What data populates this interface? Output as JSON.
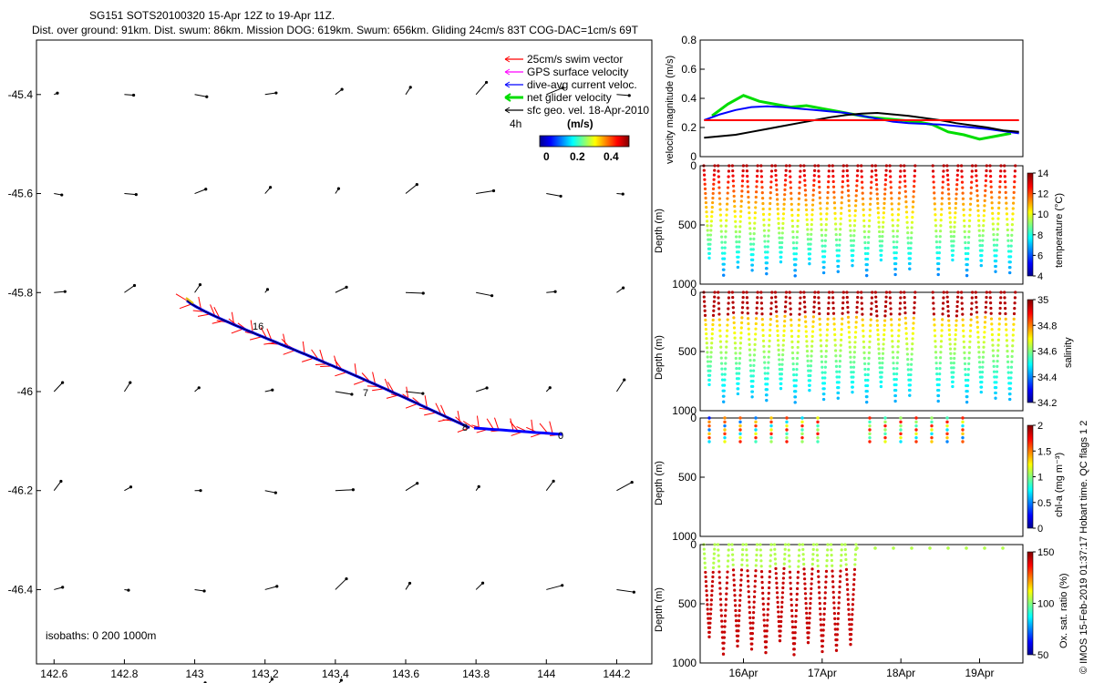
{
  "header": {
    "title": "SG151 SOTS20100320 15-Apr 12Z to 19-Apr 11Z.",
    "subtitle": "Dist. over ground: 91km. Dist. swum: 86km. Mission DOG: 619km. Swum: 656km. Gliding 24cm/s 83T COG-DAC=1cm/s 69T"
  },
  "colors": {
    "swim_vector": "#ff0000",
    "gps_velocity": "#ff00ff",
    "dive_avg_current": "#0000ff",
    "net_velocity": "#00dd00",
    "sfc_geo": "#000000"
  },
  "map": {
    "legend": [
      {
        "key": "swim",
        "label": "25cm/s swim vector",
        "color": "#ff0000"
      },
      {
        "key": "gps",
        "label": "GPS surface velocity",
        "color": "#ff00ff"
      },
      {
        "key": "dac",
        "label": "dive-avg current veloc.",
        "color": "#0000ff"
      },
      {
        "key": "net",
        "label": "net glider velocity",
        "color": "#00dd00"
      },
      {
        "key": "geo",
        "label": "sfc geo. vel. 18-Apr-2010",
        "color": "#000000"
      }
    ],
    "colorbar_label": "(m/s)",
    "duration_label": "4h",
    "colorbar_ticks": [
      "0",
      "0.2",
      "0.4"
    ],
    "isobaths_label": "isobaths: 0   200  1000m",
    "x_ticks": [
      "142.6",
      "142.8",
      "143",
      "143.2",
      "143.4",
      "143.6",
      "143.8",
      "144",
      "144.2"
    ],
    "y_ticks": [
      "-45.4",
      "-45.6",
      "-45.8",
      "-46",
      "-46.2",
      "-46.4"
    ],
    "track_labels": [
      "16",
      "7",
      "8",
      "0"
    ]
  },
  "chart_data": [
    {
      "type": "line",
      "title": "",
      "ylabel": "velocity magnitude (m/s)",
      "ylim": [
        0,
        0.8
      ],
      "y_ticks": [
        "0",
        "0.2",
        "0.4",
        "0.6",
        "0.8"
      ],
      "series": [
        {
          "color": "#00dd00",
          "x": [
            15.6,
            15.8,
            16.0,
            16.2,
            16.4,
            16.6,
            16.8,
            17.0,
            17.2,
            17.4,
            17.6,
            17.8,
            18.0,
            18.2,
            18.4,
            18.6,
            18.8,
            19.0,
            19.2,
            19.4
          ],
          "values": [
            0.28,
            0.36,
            0.42,
            0.38,
            0.36,
            0.34,
            0.35,
            0.33,
            0.31,
            0.29,
            0.27,
            0.26,
            0.25,
            0.24,
            0.22,
            0.17,
            0.15,
            0.12,
            0.14,
            0.16
          ]
        },
        {
          "color": "#0000ff",
          "x": [
            15.5,
            15.7,
            15.9,
            16.1,
            16.3,
            16.5,
            16.7,
            16.9,
            17.1,
            17.3,
            17.5,
            17.7,
            17.9,
            18.1,
            18.3,
            18.5,
            18.7,
            18.9,
            19.1,
            19.3,
            19.5
          ],
          "values": [
            0.25,
            0.29,
            0.32,
            0.34,
            0.345,
            0.34,
            0.33,
            0.32,
            0.31,
            0.3,
            0.28,
            0.26,
            0.24,
            0.23,
            0.225,
            0.22,
            0.21,
            0.2,
            0.19,
            0.175,
            0.16
          ]
        },
        {
          "color": "#000000",
          "x": [
            15.5,
            15.7,
            15.9,
            16.1,
            16.3,
            16.5,
            16.7,
            16.9,
            17.1,
            17.3,
            17.5,
            17.7,
            17.9,
            18.1,
            18.3,
            18.5,
            18.7,
            18.9,
            19.1,
            19.3,
            19.5
          ],
          "values": [
            0.13,
            0.14,
            0.15,
            0.17,
            0.19,
            0.21,
            0.23,
            0.25,
            0.27,
            0.285,
            0.295,
            0.3,
            0.29,
            0.28,
            0.265,
            0.25,
            0.23,
            0.215,
            0.2,
            0.18,
            0.17
          ]
        },
        {
          "color": "#ff0000",
          "x": [
            15.5,
            19.5
          ],
          "values": [
            0.25,
            0.25
          ]
        }
      ]
    },
    {
      "type": "scatter",
      "ylabel": "Depth (m)",
      "ylim": [
        1000,
        0
      ],
      "colorbar_label": "temperature (°C)",
      "colorbar_ticks": [
        "4",
        "6",
        "8",
        "10",
        "12",
        "14"
      ],
      "dive_count": 22,
      "gap_after_dive": 15,
      "max_depth": 930
    },
    {
      "type": "scatter",
      "ylabel": "Depth (m)",
      "ylim": [
        1000,
        0
      ],
      "colorbar_label": "salinity",
      "colorbar_ticks": [
        "34.2",
        "34.4",
        "34.6",
        "34.8",
        "35"
      ],
      "dive_count": 22,
      "max_depth": 930
    },
    {
      "type": "scatter",
      "ylabel": "Depth (m)",
      "ylim": [
        1000,
        0
      ],
      "colorbar_label": "chl-a (mg m⁻³)",
      "colorbar_ticks": [
        "0",
        "0.5",
        "1",
        "1.5",
        "2"
      ],
      "profile_max_depth": 200
    },
    {
      "type": "scatter",
      "ylabel": "Depth (m)",
      "ylim": [
        1000,
        0
      ],
      "colorbar_label": "Ox. sat. ratio (%)",
      "colorbar_ticks": [
        "50",
        "100",
        "150"
      ],
      "x_ticks": [
        "16Apr",
        "17Apr",
        "18Apr",
        "19Apr"
      ]
    }
  ],
  "side_note": "© IMOS 15-Feb-2019 01:37:17 Hobart time. QC flags 1  2"
}
